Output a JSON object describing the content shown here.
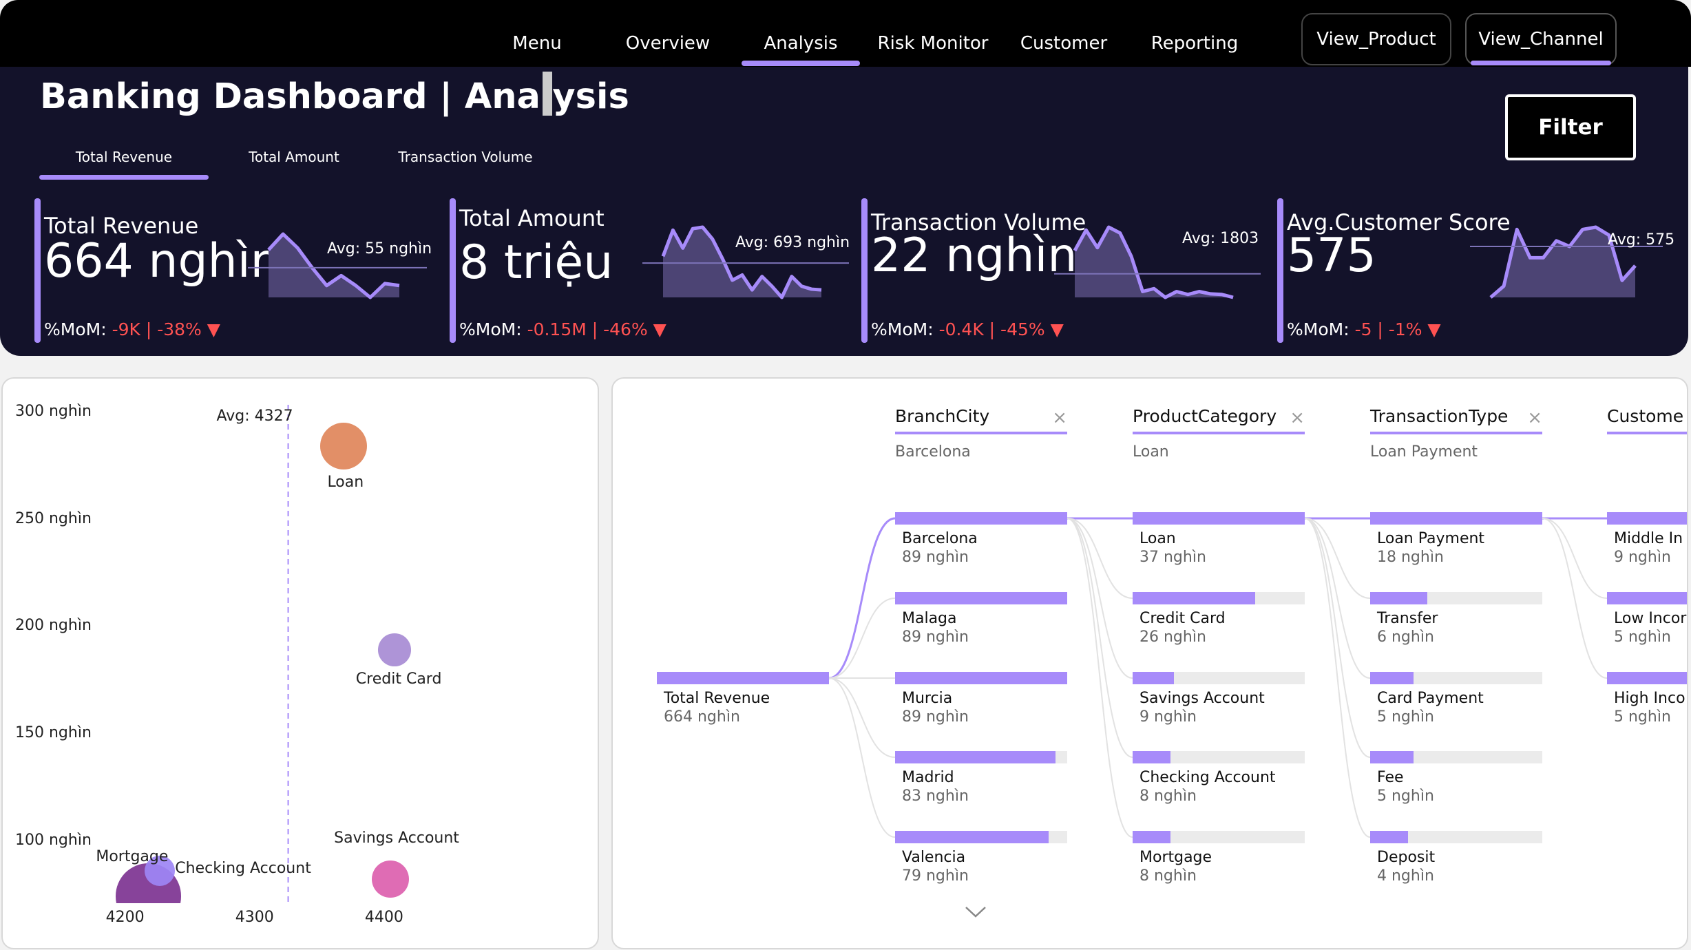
{
  "nav": {
    "tabs": [
      {
        "label": "Menu",
        "active": false
      },
      {
        "label": "Overview",
        "active": false
      },
      {
        "label": "Analysis",
        "active": true
      },
      {
        "label": "Risk Monitor",
        "active": false
      },
      {
        "label": "Customer",
        "active": false
      },
      {
        "label": "Reporting",
        "active": false
      }
    ],
    "view_product": "View_Product",
    "view_channel": "View_Channel"
  },
  "header": {
    "title": "Banking Dashboard | Analysis",
    "sub_tabs": [
      {
        "label": "Total Revenue",
        "active": true
      },
      {
        "label": "Total Amount",
        "active": false
      },
      {
        "label": "Transaction Volume",
        "active": false
      }
    ],
    "filter_label": "Filter"
  },
  "kpis": [
    {
      "label": "Total Revenue",
      "value": "664 nghìn",
      "avg": "Avg: 55 nghìn",
      "mom_prefix": "%MoM: ",
      "mom_value": "-9K | -38% ▼",
      "spark": [
        54,
        62,
        55,
        45,
        36,
        41,
        36,
        30,
        37,
        36
      ],
      "avg_value": 45
    },
    {
      "label": "Total Amount",
      "value": "8 triệu",
      "avg": "Avg: 693 nghìn",
      "mom_prefix": "%MoM: ",
      "mom_value": "-0.15M | -46% ▼",
      "spark": [
        650,
        1000,
        760,
        1020,
        1040,
        880,
        620,
        330,
        400,
        200,
        380,
        250,
        100,
        380,
        250,
        210,
        200
      ],
      "avg_value": 560
    },
    {
      "label": "Transaction Volume",
      "value": "22 nghìn",
      "avg": "Avg: 1803",
      "mom_prefix": "%MoM: ",
      "mom_value": "-0.4K | -45% ▼",
      "spark": [
        2200,
        2550,
        2250,
        2600,
        2500,
        2100,
        1500,
        1550,
        1400,
        1500,
        1450,
        1500,
        1460,
        1450,
        1400
      ],
      "avg_value": 1803
    },
    {
      "label": "Avg.Customer Score",
      "value": "575",
      "avg": "Avg: 575",
      "mom_prefix": "%MoM: ",
      "mom_value": "-5 | -1% ▼",
      "spark": [
        530,
        540,
        590,
        565,
        565,
        580,
        575,
        590,
        592,
        585,
        545,
        558
      ],
      "avg_value": 575
    }
  ],
  "scatter": {
    "chart_data": {
      "type": "scatter",
      "xlim": [
        4180,
        4500
      ],
      "ylim": [
        80,
        310
      ],
      "x_ticks": [
        4200,
        4300,
        4400
      ],
      "y_ticks": [
        "100 nghìn",
        "150 nghìn",
        "200 nghìn",
        "250 nghìn",
        "300 nghìn"
      ],
      "y_tick_values": [
        100,
        150,
        200,
        250,
        300
      ],
      "avg_label": "Avg: 4327",
      "avg_x": 4327,
      "points": [
        {
          "label": "Loan",
          "x": 4370,
          "y": 290,
          "size": 1.0,
          "color": "#e0855a"
        },
        {
          "label": "Credit Card",
          "x": 4409,
          "y": 195,
          "size": 0.7,
          "color": "#a78bd4"
        },
        {
          "label": "Mortgage",
          "x": 4219,
          "y": 80,
          "size": 1.4,
          "color": "#7d3391"
        },
        {
          "label": "Checking Account",
          "x": 4228,
          "y": 92,
          "size": 0.65,
          "color": "#9d86f5"
        },
        {
          "label": "Savings Account",
          "x": 4406,
          "y": 88,
          "size": 0.8,
          "color": "#dc5fae"
        }
      ]
    }
  },
  "tree": {
    "root": {
      "name": "Total Revenue",
      "value": "664 nghìn"
    },
    "levels": [
      {
        "title": "BranchCity",
        "selected": "Barcelona",
        "nodes": [
          {
            "name": "Barcelona",
            "value": "89 nghìn",
            "frac": 1.0
          },
          {
            "name": "Malaga",
            "value": "89 nghìn",
            "frac": 1.0
          },
          {
            "name": "Murcia",
            "value": "89 nghìn",
            "frac": 1.0
          },
          {
            "name": "Madrid",
            "value": "83 nghìn",
            "frac": 0.93
          },
          {
            "name": "Valencia",
            "value": "79 nghìn",
            "frac": 0.89
          }
        ]
      },
      {
        "title": "ProductCategory",
        "selected": "Loan",
        "nodes": [
          {
            "name": "Loan",
            "value": "37 nghìn",
            "frac": 1.0
          },
          {
            "name": "Credit Card",
            "value": "26 nghìn",
            "frac": 0.71
          },
          {
            "name": "Savings Account",
            "value": "9 nghìn",
            "frac": 0.24
          },
          {
            "name": "Checking Account",
            "value": "8 nghìn",
            "frac": 0.22
          },
          {
            "name": "Mortgage",
            "value": "8 nghìn",
            "frac": 0.22
          }
        ]
      },
      {
        "title": "TransactionType",
        "selected": "Loan Payment",
        "nodes": [
          {
            "name": "Loan Payment",
            "value": "18 nghìn",
            "frac": 1.0
          },
          {
            "name": "Transfer",
            "value": "6 nghìn",
            "frac": 0.33
          },
          {
            "name": "Card Payment",
            "value": "5 nghìn",
            "frac": 0.25
          },
          {
            "name": "Fee",
            "value": "5 nghìn",
            "frac": 0.25
          },
          {
            "name": "Deposit",
            "value": "4 nghìn",
            "frac": 0.22
          }
        ]
      },
      {
        "title": "Custome",
        "selected": "",
        "nodes": [
          {
            "name": "Middle In",
            "value": "9 nghìn",
            "frac": 1.0
          },
          {
            "name": "Low Incor",
            "value": "5 nghìn",
            "frac": 0.6
          },
          {
            "name": "High Inco",
            "value": "5 nghìn",
            "frac": 0.55
          }
        ]
      }
    ]
  }
}
